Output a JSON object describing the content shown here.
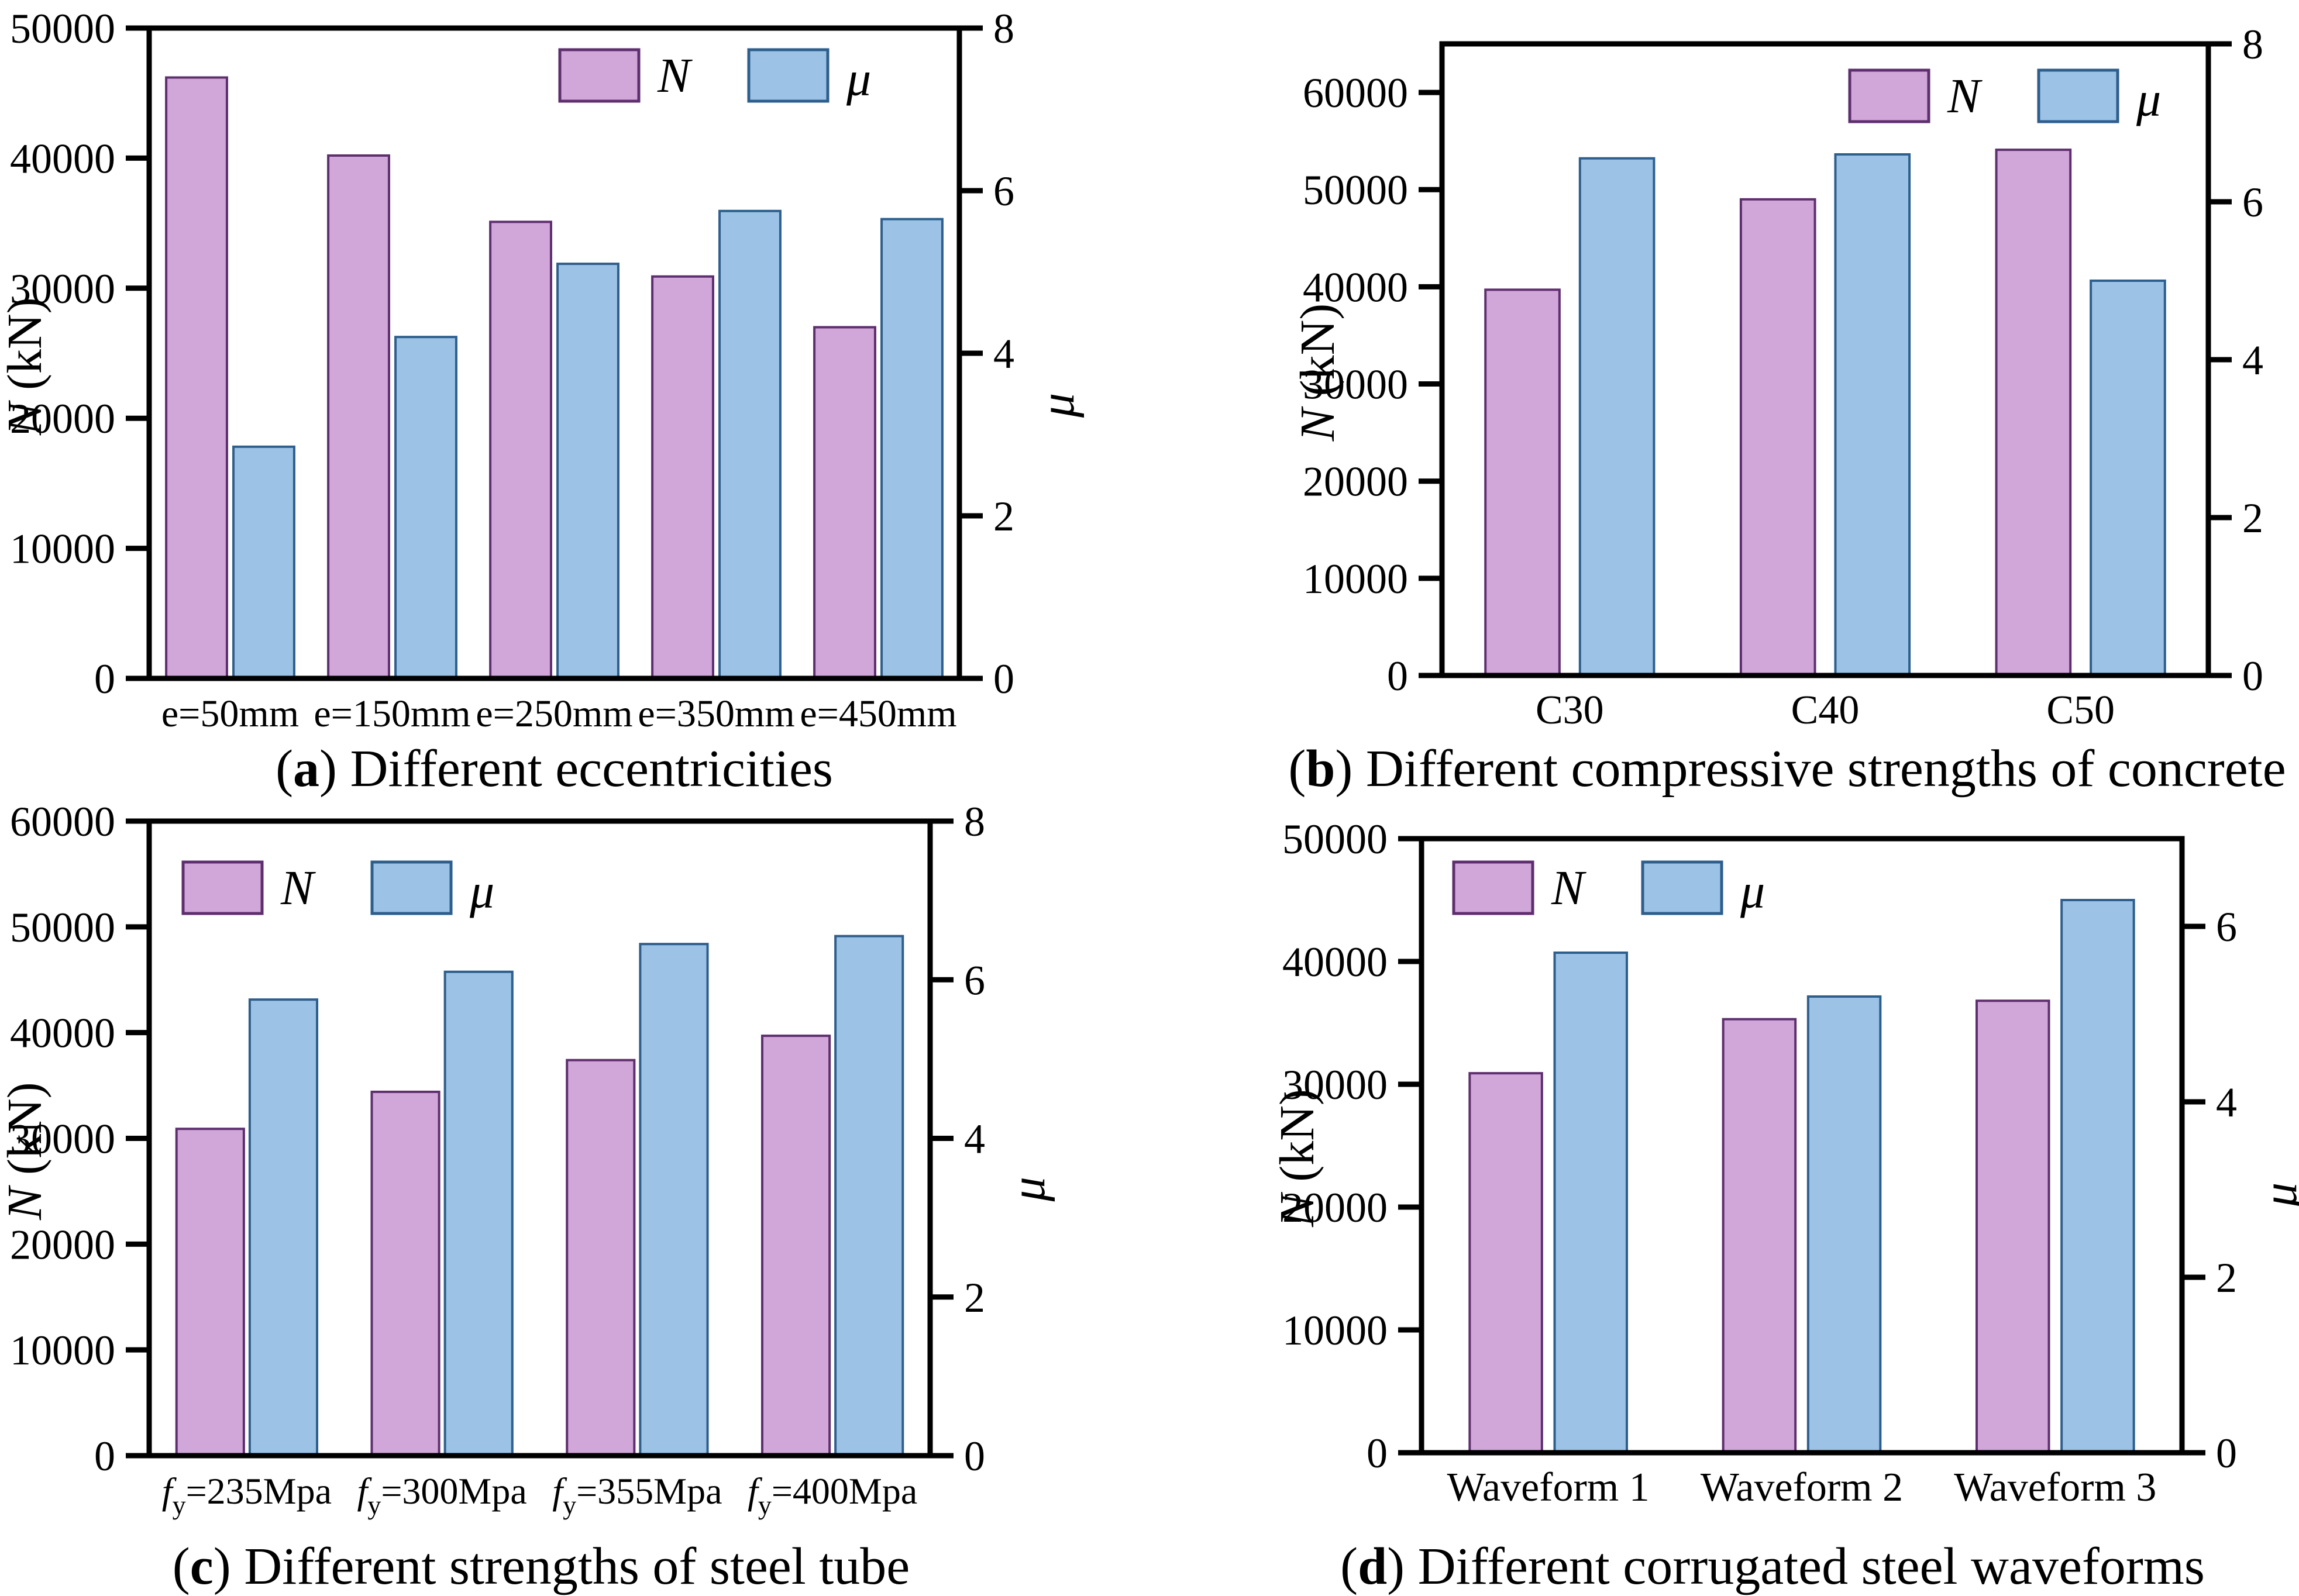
{
  "figure": {
    "background": "#ffffff",
    "colors": {
      "n_fill": "#d0a7d8",
      "n_stroke": "#5e2f6e",
      "mu_fill": "#9cc3e6",
      "mu_stroke": "#2e5e8c",
      "axis": "#000000"
    }
  },
  "chart_data": [
    {
      "id": "a",
      "type": "bar",
      "caption_letter": "a",
      "caption_text": " Different eccentricities",
      "categories": [
        "e=50mm",
        "e=150mm",
        "e=250mm",
        "e=350mm",
        "e=450mm"
      ],
      "series": [
        {
          "name": "N",
          "axis": "left",
          "values": [
            46200,
            40200,
            35100,
            30900,
            27000
          ]
        },
        {
          "name": "μ",
          "axis": "right",
          "values": [
            2.85,
            4.2,
            5.1,
            5.75,
            5.65
          ]
        }
      ],
      "left_axis": {
        "label_italic": "N",
        "label_rest": " (kN)",
        "min": 0,
        "max": 50000,
        "ticks": [
          0,
          10000,
          20000,
          30000,
          40000,
          50000
        ]
      },
      "right_axis": {
        "label_italic": "μ",
        "label_rest": "",
        "min": 0,
        "max": 8,
        "ticks": [
          0,
          2,
          4,
          6,
          8
        ]
      },
      "legend": {
        "n_label": "N",
        "mu_label": "μ",
        "position": "top-right"
      }
    },
    {
      "id": "b",
      "type": "bar",
      "caption_letter": "b",
      "caption_text": " Different compressive strengths of concrete",
      "categories": [
        "C30",
        "C40",
        "C50"
      ],
      "series": [
        {
          "name": "N",
          "axis": "left",
          "values": [
            39700,
            49000,
            54100
          ]
        },
        {
          "name": "μ",
          "axis": "right",
          "values": [
            6.55,
            6.6,
            5.0
          ]
        }
      ],
      "left_axis": {
        "label_italic": "N",
        "label_rest": " (kN)",
        "min": 0,
        "max": 65000,
        "ticks": [
          0,
          10000,
          20000,
          30000,
          40000,
          50000,
          60000
        ]
      },
      "right_axis": {
        "label_italic": "μ",
        "label_rest": "",
        "min": 0,
        "max": 8,
        "ticks": [
          0,
          2,
          4,
          6,
          8
        ]
      },
      "legend": {
        "n_label": "N",
        "mu_label": "μ",
        "position": "top-right"
      }
    },
    {
      "id": "c",
      "type": "bar",
      "caption_letter": "c",
      "caption_text": " Different strengths of steel tube",
      "categories": [
        {
          "it": "f",
          "sub": "y",
          "post": "=235Mpa"
        },
        {
          "it": "f",
          "sub": "y",
          "post": "=300Mpa"
        },
        {
          "it": "f",
          "sub": "y",
          "post": "=355Mpa"
        },
        {
          "it": "f",
          "sub": "y",
          "post": "=400Mpa"
        }
      ],
      "series": [
        {
          "name": "N",
          "axis": "left",
          "values": [
            30900,
            34400,
            37400,
            39700
          ]
        },
        {
          "name": "μ",
          "axis": "right",
          "values": [
            5.75,
            6.1,
            6.45,
            6.55
          ]
        }
      ],
      "left_axis": {
        "label_italic": "N",
        "label_rest": " (kN)",
        "min": 0,
        "max": 60000,
        "ticks": [
          0,
          10000,
          20000,
          30000,
          40000,
          50000,
          60000
        ]
      },
      "right_axis": {
        "label_italic": "μ",
        "label_rest": "",
        "min": 0,
        "max": 8,
        "ticks": [
          0,
          2,
          4,
          6,
          8
        ]
      },
      "legend": {
        "n_label": "N",
        "mu_label": "μ",
        "position": "top-left"
      }
    },
    {
      "id": "d",
      "type": "bar",
      "caption_letter": "d",
      "caption_text": " Different corrugated steel waveforms",
      "categories": [
        "Waveform 1",
        "Waveform 2",
        "Waveform 3"
      ],
      "series": [
        {
          "name": "N",
          "axis": "left",
          "values": [
            30900,
            35300,
            36800
          ]
        },
        {
          "name": "μ",
          "axis": "right",
          "values": [
            5.7,
            5.2,
            6.3
          ]
        }
      ],
      "left_axis": {
        "label_italic": "N",
        "label_rest": " (kN)",
        "min": 0,
        "max": 50000,
        "ticks": [
          0,
          10000,
          20000,
          30000,
          40000,
          50000
        ]
      },
      "right_axis": {
        "label_italic": "μ",
        "label_rest": "",
        "min": 0,
        "max": 7,
        "ticks": [
          0,
          2,
          4,
          6
        ]
      },
      "legend": {
        "n_label": "N",
        "mu_label": "μ",
        "position": "top-left"
      }
    }
  ]
}
